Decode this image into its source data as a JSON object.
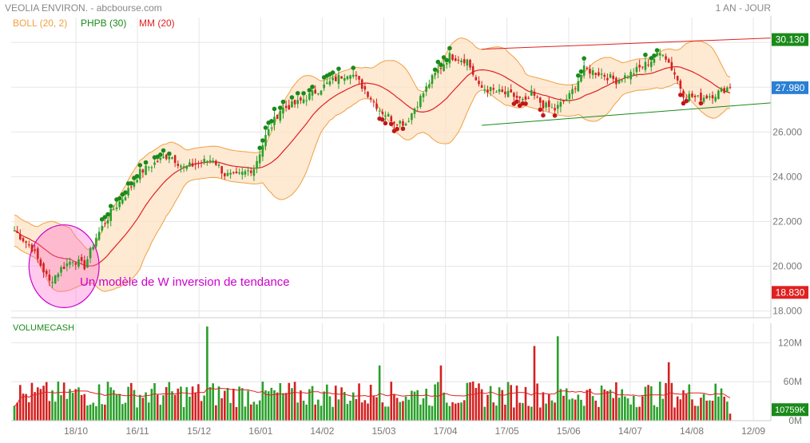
{
  "header": {
    "title": "VEOLIA ENVIRON. - abcbourse.com",
    "period": "1 AN - JOUR"
  },
  "legend": [
    {
      "label": "BOLL (20, 2)",
      "color": "#f0a040"
    },
    {
      "label": "PHPB (30)",
      "color": "#1a8a1a"
    },
    {
      "label": "MM (20)",
      "color": "#e02020"
    }
  ],
  "annotation": {
    "text": "Un modèle de W inversion de tendance",
    "color": "#cc00cc"
  },
  "chart_data": {
    "type": "candlestick",
    "price_axis": {
      "ylim": [
        17.7,
        30.9
      ],
      "ticks": [
        18.0,
        20.0,
        22.0,
        24.0,
        26.0,
        28.0,
        30.0
      ],
      "tick_labels": [
        "18.000",
        "20.000",
        "22.000",
        "24.000",
        "26.000",
        "28.000",
        "30.000"
      ],
      "markers": [
        {
          "value": 30.13,
          "label": "30.130",
          "color": "#1a8a1a"
        },
        {
          "value": 27.98,
          "label": "27.980",
          "color": "#2a7fd4"
        },
        {
          "value": 18.83,
          "label": "18.830",
          "color": "#e02020"
        }
      ]
    },
    "x_axis": {
      "tick_labels": [
        "18/10",
        "16/11",
        "15/12",
        "16/01",
        "14/02",
        "15/03",
        "17/04",
        "17/05",
        "15/06",
        "14/07",
        "14/08",
        "12/09"
      ]
    },
    "close_anchors": [
      [
        0,
        21.6
      ],
      [
        6,
        20.8
      ],
      [
        12,
        19.3
      ],
      [
        16,
        19.9
      ],
      [
        20,
        20.3
      ],
      [
        24,
        20.0
      ],
      [
        28,
        21.3
      ],
      [
        33,
        22.4
      ],
      [
        38,
        23.2
      ],
      [
        43,
        24.2
      ],
      [
        48,
        24.6
      ],
      [
        53,
        25.0
      ],
      [
        58,
        24.4
      ],
      [
        63,
        24.6
      ],
      [
        68,
        24.8
      ],
      [
        72,
        24.1
      ],
      [
        76,
        24.0
      ],
      [
        82,
        24.4
      ],
      [
        86,
        25.8
      ],
      [
        91,
        27.0
      ],
      [
        97,
        27.3
      ],
      [
        103,
        27.8
      ],
      [
        109,
        28.3
      ],
      [
        115,
        28.7
      ],
      [
        120,
        27.9
      ],
      [
        125,
        27.0
      ],
      [
        130,
        26.5
      ],
      [
        134,
        26.4
      ],
      [
        138,
        27.3
      ],
      [
        143,
        28.4
      ],
      [
        149,
        29.4
      ],
      [
        155,
        29.2
      ],
      [
        159,
        28.0
      ],
      [
        165,
        27.8
      ],
      [
        171,
        27.6
      ],
      [
        175,
        27.3
      ],
      [
        177,
        27.7
      ],
      [
        181,
        27.2
      ],
      [
        185,
        27.0
      ],
      [
        190,
        27.6
      ],
      [
        195,
        28.8
      ],
      [
        201,
        28.6
      ],
      [
        206,
        28.3
      ],
      [
        211,
        28.6
      ],
      [
        217,
        29.1
      ],
      [
        222,
        29.6
      ],
      [
        226,
        28.6
      ],
      [
        229,
        27.7
      ],
      [
        234,
        27.5
      ],
      [
        240,
        27.7
      ],
      [
        244,
        27.98
      ]
    ],
    "volume_axis": {
      "ylim": [
        0,
        150
      ],
      "ticks": [
        0,
        60,
        120
      ],
      "tick_labels": [
        "0M",
        "60M",
        "120M"
      ],
      "unit": "M",
      "label": "VOLUMECASH",
      "last_value_label": "10759K",
      "baseline": 45,
      "spikes": [
        [
          32,
          60
        ],
        [
          66,
          145
        ],
        [
          125,
          85
        ],
        [
          146,
          85
        ],
        [
          178,
          115
        ],
        [
          186,
          130
        ],
        [
          224,
          90
        ]
      ]
    },
    "channel_lines": [
      {
        "from": [
          160,
          29.7
        ],
        "to": [
          260,
          30.2
        ],
        "color": "#e02020"
      },
      {
        "from": [
          160,
          26.3
        ],
        "to": [
          260,
          27.3
        ],
        "color": "#1a8a1a"
      }
    ],
    "highlight_ellipse": {
      "center": [
        17,
        20.0
      ],
      "radii": [
        12,
        1.85
      ],
      "color": "#cc00cc"
    },
    "n_days": 246,
    "grid": true
  }
}
